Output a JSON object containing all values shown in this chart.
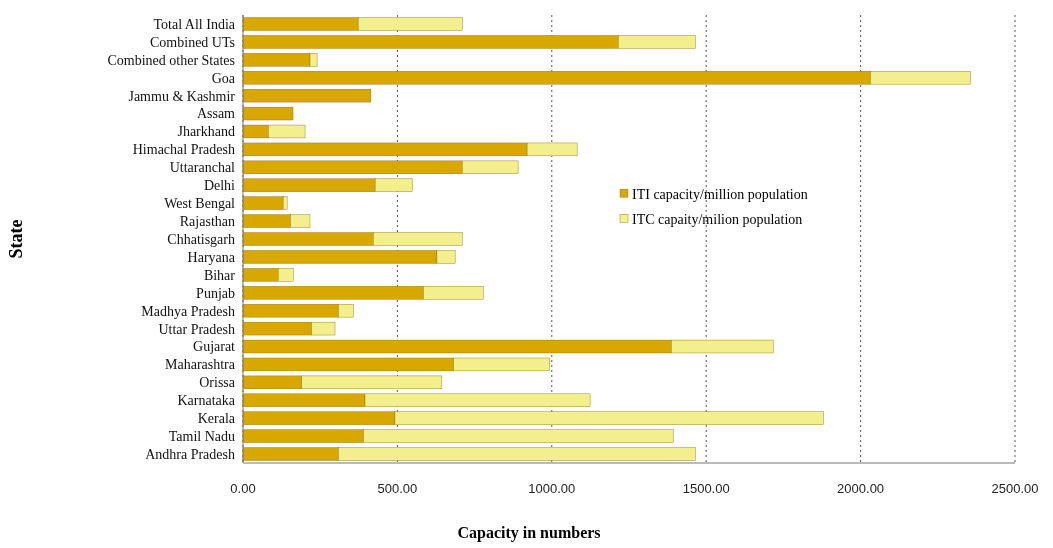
{
  "chart_data": {
    "type": "bar",
    "orientation": "horizontal",
    "stacked": true,
    "categories": [
      "Total All India",
      "Combined UTs",
      "Combined other States",
      "Goa",
      "Jammu & Kashmir",
      "Assam",
      "Jharkhand",
      "Himachal Pradesh",
      "Uttaranchal",
      "Delhi",
      "West Bengal",
      "Rajasthan",
      "Chhatisgarh",
      "Haryana",
      "Bihar",
      "Punjab",
      "Madhya Pradesh",
      "Uttar Pradesh",
      "Gujarat",
      "Maharashtra",
      "Orissa",
      "Karnataka",
      "Kerala",
      "Tamil Nadu",
      "Andhra Pradesh"
    ],
    "series": [
      {
        "name": "ITI capacity/million population",
        "color": "#d9a800",
        "values": [
          373,
          1215,
          217,
          2032,
          414,
          162,
          82,
          920,
          710,
          428,
          130,
          154,
          422,
          628,
          114,
          584,
          309,
          222,
          1387,
          682,
          190,
          395,
          492,
          390,
          309
        ]
      },
      {
        "name": "ITC capaity/milion population",
        "color": "#f2ef8c",
        "values": [
          337,
          250,
          23,
          324,
          0,
          0,
          119,
          162,
          181,
          120,
          13,
          63,
          288,
          59,
          49,
          194,
          49,
          76,
          330,
          311,
          454,
          729,
          1387,
          1003,
          1156
        ]
      }
    ],
    "xlim": [
      0,
      2500
    ],
    "xticks": [
      {
        "value": 0,
        "label": "0.00"
      },
      {
        "value": 500,
        "label": "500.00"
      },
      {
        "value": 1000,
        "label": "1000.00"
      },
      {
        "value": 1500,
        "label": "1500.00"
      },
      {
        "value": 2000,
        "label": "2000.00"
      },
      {
        "value": 2500,
        "label": "2500.00"
      }
    ],
    "xlabel": "Capacity in numbers",
    "ylabel": "State",
    "grid": "x",
    "legend": "right"
  }
}
